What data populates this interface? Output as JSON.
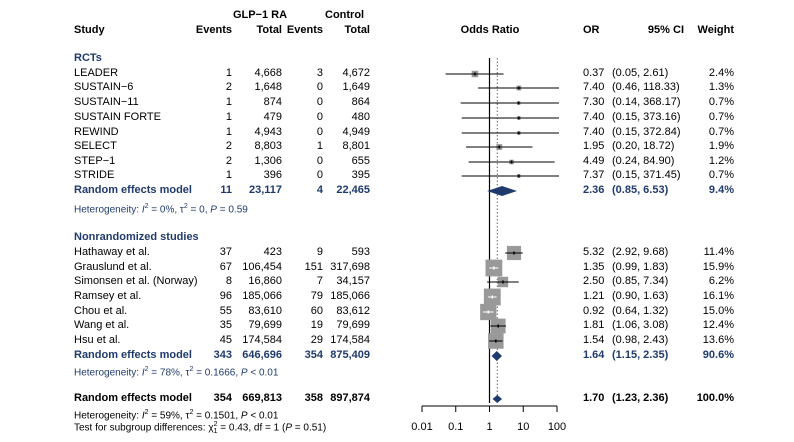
{
  "chart_data": {
    "type": "forest",
    "title": "",
    "xlabel": "Odds Ratio",
    "xscale": "log",
    "xlim": [
      0.01,
      100
    ],
    "xticks": [
      "0.01",
      "0.1",
      "1",
      "10",
      "100"
    ],
    "null_line": 1,
    "overall_line": 1.7,
    "headers": {
      "study": "Study",
      "group1": "GLP−1 RA",
      "group2": "Control",
      "events": "Events",
      "total": "Total",
      "plot": "Odds Ratio",
      "or": "OR",
      "ci": "95% CI",
      "weight": "Weight"
    },
    "subgroups": [
      {
        "name": "RCTs",
        "studies": [
          {
            "study": "LEADER",
            "e1": "1",
            "n1": "4,668",
            "e2": "3",
            "n2": "4,672",
            "or": 0.37,
            "lo": 0.05,
            "hi": 2.61,
            "or_text": "0.37",
            "ci_text": "(0.05, 2.61)",
            "weight": "2.4%"
          },
          {
            "study": "SUSTAIN−6",
            "e1": "2",
            "n1": "1,648",
            "e2": "0",
            "n2": "1,649",
            "or": 7.4,
            "lo": 0.46,
            "hi": 118.33,
            "or_text": "7.40",
            "ci_text": "(0.46, 118.33)",
            "weight": "1.3%"
          },
          {
            "study": "SUSTAIN−11",
            "e1": "1",
            "n1": "874",
            "e2": "0",
            "n2": "864",
            "or": 7.3,
            "lo": 0.14,
            "hi": 368.17,
            "or_text": "7.30",
            "ci_text": "(0.14, 368.17)",
            "weight": "0.7%"
          },
          {
            "study": "SUSTAIN FORTE",
            "e1": "1",
            "n1": "479",
            "e2": "0",
            "n2": "480",
            "or": 7.4,
            "lo": 0.15,
            "hi": 373.16,
            "or_text": "7.40",
            "ci_text": "(0.15, 373.16)",
            "weight": "0.7%"
          },
          {
            "study": "REWIND",
            "e1": "1",
            "n1": "4,943",
            "e2": "0",
            "n2": "4,949",
            "or": 7.4,
            "lo": 0.15,
            "hi": 372.84,
            "or_text": "7.40",
            "ci_text": "(0.15, 372.84)",
            "weight": "0.7%"
          },
          {
            "study": "SELECT",
            "e1": "2",
            "n1": "8,803",
            "e2": "1",
            "n2": "8,801",
            "or": 1.95,
            "lo": 0.2,
            "hi": 18.72,
            "or_text": "1.95",
            "ci_text": "(0.20, 18.72)",
            "weight": "1.9%"
          },
          {
            "study": "STEP−1",
            "e1": "2",
            "n1": "1,306",
            "e2": "0",
            "n2": "655",
            "or": 4.49,
            "lo": 0.24,
            "hi": 84.9,
            "or_text": "4.49",
            "ci_text": "(0.24, 84.90)",
            "weight": "1.2%"
          },
          {
            "study": "STRIDE",
            "e1": "1",
            "n1": "396",
            "e2": "0",
            "n2": "395",
            "or": 7.37,
            "lo": 0.15,
            "hi": 371.45,
            "or_text": "7.37",
            "ci_text": "(0.15, 371.45)",
            "weight": "0.7%"
          }
        ],
        "pooled": {
          "label": "Random effects model",
          "e1": "11",
          "n1": "23,117",
          "e2": "4",
          "n2": "22,465",
          "or": 2.36,
          "lo": 0.85,
          "hi": 6.53,
          "or_text": "2.36",
          "ci_text": "(0.85, 6.53)",
          "weight": "9.4%"
        },
        "heterogeneity": {
          "prefix": "Heterogeneity: ",
          "i2": "I",
          "i2_val": " = 0%, τ",
          "tau_val": " = 0, ",
          "p": "P",
          "p_val": " = 0.59"
        }
      },
      {
        "name": "Nonrandomized studies",
        "studies": [
          {
            "study": "Hathaway et al.",
            "e1": "37",
            "n1": "423",
            "e2": "9",
            "n2": "593",
            "or": 5.32,
            "lo": 2.92,
            "hi": 9.68,
            "or_text": "5.32",
            "ci_text": "(2.92, 9.68)",
            "weight": "11.4%"
          },
          {
            "study": "Grauslund et al.",
            "e1": "67",
            "n1": "106,454",
            "e2": "151",
            "n2": "317,698",
            "or": 1.35,
            "lo": 0.99,
            "hi": 1.83,
            "or_text": "1.35",
            "ci_text": "(0.99, 1.83)",
            "weight": "15.9%"
          },
          {
            "study": "Simonsen et al. (Norway)",
            "e1": "8",
            "n1": "16,860",
            "e2": "7",
            "n2": "34,157",
            "or": 2.5,
            "lo": 0.85,
            "hi": 7.34,
            "or_text": "2.50",
            "ci_text": "(0.85, 7.34)",
            "weight": "6.2%"
          },
          {
            "study": "Ramsey et al.",
            "e1": "96",
            "n1": "185,066",
            "e2": "79",
            "n2": "185,066",
            "or": 1.21,
            "lo": 0.9,
            "hi": 1.63,
            "or_text": "1.21",
            "ci_text": "(0.90, 1.63)",
            "weight": "16.1%"
          },
          {
            "study": "Chou et al.",
            "e1": "55",
            "n1": "83,610",
            "e2": "60",
            "n2": "83,612",
            "or": 0.92,
            "lo": 0.64,
            "hi": 1.32,
            "or_text": "0.92",
            "ci_text": "(0.64, 1.32)",
            "weight": "15.0%"
          },
          {
            "study": "Wang et al.",
            "e1": "35",
            "n1": "79,699",
            "e2": "19",
            "n2": "79,699",
            "or": 1.81,
            "lo": 1.06,
            "hi": 3.08,
            "or_text": "1.81",
            "ci_text": "(1.06, 3.08)",
            "weight": "12.4%"
          },
          {
            "study": "Hsu et al.",
            "e1": "45",
            "n1": "174,584",
            "e2": "29",
            "n2": "174,584",
            "or": 1.54,
            "lo": 0.98,
            "hi": 2.43,
            "or_text": "1.54",
            "ci_text": "(0.98, 2.43)",
            "weight": "13.6%"
          }
        ],
        "pooled": {
          "label": "Random effects model",
          "e1": "343",
          "n1": "646,696",
          "e2": "354",
          "n2": "875,409",
          "or": 1.64,
          "lo": 1.15,
          "hi": 2.35,
          "or_text": "1.64",
          "ci_text": "(1.15, 2.35)",
          "weight": "90.6%"
        },
        "heterogeneity": {
          "prefix": "Heterogeneity: ",
          "i2": "I",
          "i2_val": " = 78%, τ",
          "tau_val": " = 0.1666, ",
          "p": "P",
          "p_val": " < 0.01"
        }
      }
    ],
    "overall": {
      "label": "Random effects model",
      "e1": "354",
      "n1": "669,813",
      "e2": "358",
      "n2": "897,874",
      "or": 1.7,
      "lo": 1.23,
      "hi": 2.36,
      "or_text": "1.70",
      "ci_text": "(1.23, 2.36)",
      "weight": "100.0%"
    },
    "overall_heterogeneity": {
      "prefix": "Heterogeneity: ",
      "i2": "I",
      "i2_val": " = 59%, τ",
      "tau_val": " = 0.1501, ",
      "p": "P",
      "p_val": " < 0.01"
    },
    "subgroup_test": {
      "prefix": "Test for subgroup differences: χ",
      "sub": "1",
      "sup": "2",
      "mid": " = 0.43, df = 1 (",
      "p": "P",
      "suffix": " = 0.51)"
    }
  },
  "colors": {
    "pooled": "#1f3b6e",
    "box": "#999999",
    "line": "#000000"
  }
}
